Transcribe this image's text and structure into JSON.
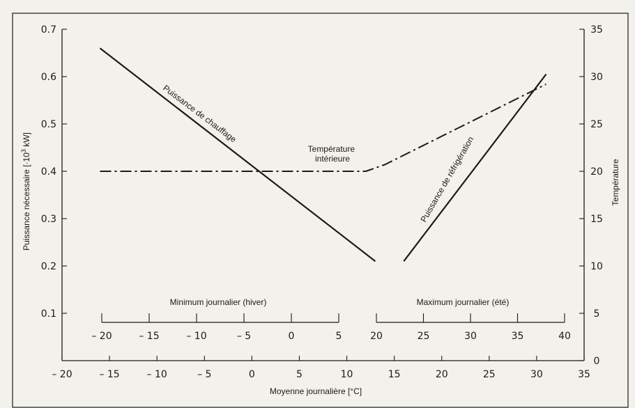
{
  "chart_data": {
    "type": "line",
    "xlabel": "Moyenne journalière [°C]",
    "ylabel_left": "Puissance nécessaire [·10³ kW]",
    "ylabel_right": "Température",
    "xlim": [
      -20,
      35
    ],
    "ylim_left": [
      0,
      0.7
    ],
    "ylim_right": [
      0,
      35
    ],
    "x_ticks": [
      -20,
      -15,
      -10,
      -5,
      0,
      5,
      10,
      15,
      20,
      25,
      30,
      35
    ],
    "x_tick_labels": [
      "– 20",
      "– 15",
      "– 10",
      "– 5",
      "0",
      "5",
      "10",
      "15",
      "20",
      "25",
      "30",
      "35"
    ],
    "y_left_ticks": [
      0.1,
      0.2,
      0.3,
      0.4,
      0.5,
      0.6,
      0.7
    ],
    "y_left_tick_labels": [
      "0.1",
      "0.2",
      "0.3",
      "0.4",
      "0.5",
      "0.6",
      "0.7"
    ],
    "y_right_ticks": [
      0,
      5,
      10,
      15,
      20,
      25,
      30,
      35
    ],
    "y_right_tick_labels": [
      "0",
      "5",
      "10",
      "15",
      "20",
      "25",
      "30",
      "35"
    ],
    "series": [
      {
        "name": "Puissance de chauffage",
        "axis": "left",
        "style": "solid",
        "x": [
          -16,
          13
        ],
        "y": [
          0.66,
          0.21
        ]
      },
      {
        "name": "Puissance de réfrigération",
        "axis": "left",
        "style": "solid",
        "x": [
          16,
          31
        ],
        "y": [
          0.21,
          0.605
        ]
      },
      {
        "name": "Température intérieure",
        "axis": "right",
        "style": "dashdot",
        "x": [
          -16,
          12,
          14,
          31
        ],
        "y": [
          20,
          20,
          20.7,
          29.2
        ]
      }
    ],
    "secondary_scales": [
      {
        "name": "Minimum journalier (hiver)",
        "from": -20,
        "to": 5,
        "ticks": [
          -20,
          -15,
          -10,
          -5,
          0,
          5
        ],
        "tick_labels": [
          "– 20",
          "– 15",
          "– 10",
          "– 5",
          "0",
          "5"
        ]
      },
      {
        "name": "Maximum journalier (été)",
        "from": 20,
        "to": 40,
        "ticks": [
          20,
          25,
          30,
          35,
          40
        ],
        "tick_labels": [
          "20",
          "25",
          "30",
          "35",
          "40"
        ]
      }
    ],
    "grid": false
  },
  "colors": {
    "background": "#f3f1ec",
    "ink": "#1a1a1a"
  }
}
